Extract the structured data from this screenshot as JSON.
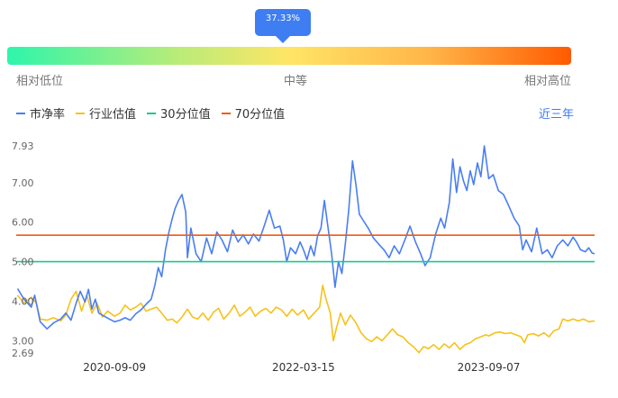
{
  "gauge": {
    "percentile_label": "37.33%",
    "percentile": 37.33,
    "low_label": "相对低位",
    "mid_label": "中等",
    "high_label": "相对高位",
    "colors": [
      "#2ef5ab",
      "#ffe566",
      "#ff5a00"
    ]
  },
  "legend": {
    "items": [
      {
        "label": "市净率",
        "color": "#4a7ef2"
      },
      {
        "label": "行业估值",
        "color": "#f5c21b"
      },
      {
        "label": "30分位值",
        "color": "#19c98a"
      },
      {
        "label": "70分位值",
        "color": "#f05a14"
      }
    ]
  },
  "range_button": "近三年",
  "chart_data": {
    "type": "line",
    "ylim": [
      2.69,
      7.93
    ],
    "y_ticks": [
      "7.93",
      "7.00",
      "6.00",
      "5.00",
      "4.00",
      "3.00",
      "2.69"
    ],
    "x_tick_labels": [
      "2020-09-09",
      "2022-03-15",
      "2023-09-07"
    ],
    "x_range": [
      "2019-11-27",
      "2024-07-12"
    ],
    "series": [
      {
        "name": "市净率",
        "color": "#4a7ef2",
        "points": [
          [
            "2019-12-01",
            4.32
          ],
          [
            "2019-12-20",
            4.05
          ],
          [
            "2020-01-10",
            3.85
          ],
          [
            "2020-01-20",
            4.15
          ],
          [
            "2020-02-05",
            3.48
          ],
          [
            "2020-02-25",
            3.3
          ],
          [
            "2020-03-15",
            3.45
          ],
          [
            "2020-04-05",
            3.55
          ],
          [
            "2020-04-20",
            3.7
          ],
          [
            "2020-05-05",
            3.52
          ],
          [
            "2020-05-20",
            3.95
          ],
          [
            "2020-06-01",
            4.25
          ],
          [
            "2020-06-15",
            3.98
          ],
          [
            "2020-06-25",
            4.3
          ],
          [
            "2020-07-05",
            3.8
          ],
          [
            "2020-07-15",
            4.05
          ],
          [
            "2020-07-25",
            3.7
          ],
          [
            "2020-08-10",
            3.62
          ],
          [
            "2020-08-25",
            3.55
          ],
          [
            "2020-09-09",
            3.48
          ],
          [
            "2020-09-25",
            3.52
          ],
          [
            "2020-10-10",
            3.58
          ],
          [
            "2020-10-25",
            3.52
          ],
          [
            "2020-11-10",
            3.68
          ],
          [
            "2020-11-25",
            3.78
          ],
          [
            "2020-12-10",
            3.92
          ],
          [
            "2020-12-25",
            4.05
          ],
          [
            "2021-01-05",
            4.4
          ],
          [
            "2021-01-15",
            4.85
          ],
          [
            "2021-01-25",
            4.62
          ],
          [
            "2021-02-05",
            5.3
          ],
          [
            "2021-02-15",
            5.75
          ],
          [
            "2021-02-25",
            6.1
          ],
          [
            "2021-03-05",
            6.35
          ],
          [
            "2021-03-15",
            6.55
          ],
          [
            "2021-03-25",
            6.7
          ],
          [
            "2021-04-05",
            6.25
          ],
          [
            "2021-04-10",
            5.1
          ],
          [
            "2021-04-20",
            5.85
          ],
          [
            "2021-05-05",
            5.2
          ],
          [
            "2021-05-20",
            5.0
          ],
          [
            "2021-06-05",
            5.6
          ],
          [
            "2021-06-20",
            5.2
          ],
          [
            "2021-07-05",
            5.75
          ],
          [
            "2021-07-20",
            5.55
          ],
          [
            "2021-08-05",
            5.25
          ],
          [
            "2021-08-20",
            5.8
          ],
          [
            "2021-09-05",
            5.5
          ],
          [
            "2021-09-20",
            5.68
          ],
          [
            "2021-10-05",
            5.45
          ],
          [
            "2021-10-20",
            5.7
          ],
          [
            "2021-11-05",
            5.52
          ],
          [
            "2021-11-20",
            5.9
          ],
          [
            "2021-12-05",
            6.3
          ],
          [
            "2021-12-20",
            5.85
          ],
          [
            "2022-01-05",
            5.9
          ],
          [
            "2022-01-15",
            5.55
          ],
          [
            "2022-01-25",
            5.0
          ],
          [
            "2022-02-05",
            5.35
          ],
          [
            "2022-02-20",
            5.2
          ],
          [
            "2022-03-05",
            5.5
          ],
          [
            "2022-03-15",
            5.3
          ],
          [
            "2022-03-25",
            5.05
          ],
          [
            "2022-04-05",
            5.4
          ],
          [
            "2022-04-15",
            5.15
          ],
          [
            "2022-04-25",
            5.65
          ],
          [
            "2022-05-05",
            5.85
          ],
          [
            "2022-05-15",
            6.55
          ],
          [
            "2022-05-25",
            5.9
          ],
          [
            "2022-06-05",
            5.2
          ],
          [
            "2022-06-15",
            4.35
          ],
          [
            "2022-06-25",
            5.0
          ],
          [
            "2022-07-05",
            4.7
          ],
          [
            "2022-07-15",
            5.45
          ],
          [
            "2022-07-25",
            6.3
          ],
          [
            "2022-08-05",
            7.55
          ],
          [
            "2022-08-15",
            6.95
          ],
          [
            "2022-08-25",
            6.2
          ],
          [
            "2022-09-05",
            6.05
          ],
          [
            "2022-09-20",
            5.85
          ],
          [
            "2022-10-05",
            5.6
          ],
          [
            "2022-10-20",
            5.45
          ],
          [
            "2022-11-05",
            5.3
          ],
          [
            "2022-11-20",
            5.1
          ],
          [
            "2022-12-05",
            5.4
          ],
          [
            "2022-12-20",
            5.2
          ],
          [
            "2023-01-05",
            5.55
          ],
          [
            "2023-01-20",
            5.9
          ],
          [
            "2023-02-05",
            5.5
          ],
          [
            "2023-02-20",
            5.2
          ],
          [
            "2023-03-05",
            4.9
          ],
          [
            "2023-03-20",
            5.1
          ],
          [
            "2023-04-05",
            5.7
          ],
          [
            "2023-04-20",
            6.1
          ],
          [
            "2023-05-01",
            5.85
          ],
          [
            "2023-05-15",
            6.5
          ],
          [
            "2023-05-25",
            7.6
          ],
          [
            "2023-06-05",
            6.75
          ],
          [
            "2023-06-15",
            7.4
          ],
          [
            "2023-06-25",
            7.05
          ],
          [
            "2023-07-05",
            6.8
          ],
          [
            "2023-07-15",
            7.3
          ],
          [
            "2023-07-25",
            6.95
          ],
          [
            "2023-08-05",
            7.5
          ],
          [
            "2023-08-15",
            7.15
          ],
          [
            "2023-08-25",
            7.93
          ],
          [
            "2023-09-07",
            7.1
          ],
          [
            "2023-09-20",
            7.2
          ],
          [
            "2023-10-05",
            6.8
          ],
          [
            "2023-10-20",
            6.7
          ],
          [
            "2023-11-05",
            6.4
          ],
          [
            "2023-11-20",
            6.1
          ],
          [
            "2023-12-05",
            5.9
          ],
          [
            "2023-12-15",
            5.3
          ],
          [
            "2023-12-25",
            5.55
          ],
          [
            "2024-01-10",
            5.25
          ],
          [
            "2024-01-25",
            5.85
          ],
          [
            "2024-02-10",
            5.2
          ],
          [
            "2024-02-25",
            5.3
          ],
          [
            "2024-03-10",
            5.1
          ],
          [
            "2024-03-25",
            5.4
          ],
          [
            "2024-04-10",
            5.55
          ],
          [
            "2024-04-25",
            5.4
          ],
          [
            "2024-05-10",
            5.62
          ],
          [
            "2024-05-20",
            5.5
          ],
          [
            "2024-06-01",
            5.3
          ],
          [
            "2024-06-15",
            5.25
          ],
          [
            "2024-06-25",
            5.35
          ],
          [
            "2024-07-05",
            5.22
          ],
          [
            "2024-07-12",
            5.2
          ]
        ]
      },
      {
        "name": "行业估值",
        "color": "#f5c21b",
        "points": [
          [
            "2019-12-01",
            4.15
          ],
          [
            "2019-12-20",
            3.95
          ],
          [
            "2020-01-10",
            4.1
          ],
          [
            "2020-01-25",
            3.95
          ],
          [
            "2020-02-05",
            3.55
          ],
          [
            "2020-02-25",
            3.52
          ],
          [
            "2020-03-15",
            3.58
          ],
          [
            "2020-04-05",
            3.5
          ],
          [
            "2020-04-20",
            3.65
          ],
          [
            "2020-05-05",
            4.05
          ],
          [
            "2020-05-20",
            4.25
          ],
          [
            "2020-06-05",
            3.75
          ],
          [
            "2020-06-20",
            4.15
          ],
          [
            "2020-07-05",
            3.7
          ],
          [
            "2020-07-20",
            3.95
          ],
          [
            "2020-08-05",
            3.6
          ],
          [
            "2020-08-20",
            3.75
          ],
          [
            "2020-09-09",
            3.62
          ],
          [
            "2020-09-25",
            3.7
          ],
          [
            "2020-10-10",
            3.9
          ],
          [
            "2020-10-25",
            3.78
          ],
          [
            "2020-11-10",
            3.85
          ],
          [
            "2020-11-25",
            3.95
          ],
          [
            "2020-12-10",
            3.75
          ],
          [
            "2020-12-25",
            3.8
          ],
          [
            "2021-01-10",
            3.85
          ],
          [
            "2021-01-25",
            3.7
          ],
          [
            "2021-02-10",
            3.52
          ],
          [
            "2021-02-25",
            3.55
          ],
          [
            "2021-03-10",
            3.45
          ],
          [
            "2021-03-25",
            3.6
          ],
          [
            "2021-04-10",
            3.8
          ],
          [
            "2021-04-25",
            3.6
          ],
          [
            "2021-05-10",
            3.55
          ],
          [
            "2021-05-25",
            3.7
          ],
          [
            "2021-06-10",
            3.52
          ],
          [
            "2021-06-25",
            3.72
          ],
          [
            "2021-07-10",
            3.82
          ],
          [
            "2021-07-25",
            3.55
          ],
          [
            "2021-08-10",
            3.7
          ],
          [
            "2021-08-25",
            3.9
          ],
          [
            "2021-09-10",
            3.62
          ],
          [
            "2021-09-25",
            3.72
          ],
          [
            "2021-10-10",
            3.85
          ],
          [
            "2021-10-25",
            3.62
          ],
          [
            "2021-11-10",
            3.75
          ],
          [
            "2021-11-25",
            3.82
          ],
          [
            "2021-12-10",
            3.7
          ],
          [
            "2021-12-25",
            3.85
          ],
          [
            "2022-01-10",
            3.78
          ],
          [
            "2022-01-25",
            3.62
          ],
          [
            "2022-02-10",
            3.8
          ],
          [
            "2022-02-25",
            3.65
          ],
          [
            "2022-03-15",
            3.78
          ],
          [
            "2022-03-30",
            3.55
          ],
          [
            "2022-04-15",
            3.7
          ],
          [
            "2022-05-01",
            3.85
          ],
          [
            "2022-05-10",
            4.4
          ],
          [
            "2022-05-20",
            4.05
          ],
          [
            "2022-06-01",
            3.7
          ],
          [
            "2022-06-10",
            3.0
          ],
          [
            "2022-06-20",
            3.35
          ],
          [
            "2022-07-01",
            3.7
          ],
          [
            "2022-07-15",
            3.4
          ],
          [
            "2022-07-30",
            3.65
          ],
          [
            "2022-08-15",
            3.45
          ],
          [
            "2022-08-30",
            3.2
          ],
          [
            "2022-09-15",
            3.05
          ],
          [
            "2022-09-30",
            2.98
          ],
          [
            "2022-10-15",
            3.1
          ],
          [
            "2022-10-30",
            3.0
          ],
          [
            "2022-11-15",
            3.15
          ],
          [
            "2022-11-30",
            3.3
          ],
          [
            "2022-12-15",
            3.15
          ],
          [
            "2022-12-30",
            3.1
          ],
          [
            "2023-01-15",
            2.95
          ],
          [
            "2023-01-30",
            2.85
          ],
          [
            "2023-02-15",
            2.7
          ],
          [
            "2023-03-01",
            2.85
          ],
          [
            "2023-03-15",
            2.8
          ],
          [
            "2023-03-30",
            2.9
          ],
          [
            "2023-04-15",
            2.78
          ],
          [
            "2023-04-30",
            2.92
          ],
          [
            "2023-05-15",
            2.82
          ],
          [
            "2023-05-30",
            2.95
          ],
          [
            "2023-06-15",
            2.78
          ],
          [
            "2023-06-30",
            2.9
          ],
          [
            "2023-07-15",
            2.95
          ],
          [
            "2023-07-30",
            3.05
          ],
          [
            "2023-08-15",
            3.1
          ],
          [
            "2023-08-30",
            3.15
          ],
          [
            "2023-09-07",
            3.12
          ],
          [
            "2023-09-25",
            3.2
          ],
          [
            "2023-10-10",
            3.22
          ],
          [
            "2023-10-25",
            3.18
          ],
          [
            "2023-11-10",
            3.2
          ],
          [
            "2023-11-25",
            3.15
          ],
          [
            "2023-12-10",
            3.1
          ],
          [
            "2023-12-20",
            2.95
          ],
          [
            "2023-12-30",
            3.15
          ],
          [
            "2024-01-15",
            3.18
          ],
          [
            "2024-01-30",
            3.12
          ],
          [
            "2024-02-15",
            3.2
          ],
          [
            "2024-03-01",
            3.1
          ],
          [
            "2024-03-15",
            3.25
          ],
          [
            "2024-03-30",
            3.3
          ],
          [
            "2024-04-10",
            3.55
          ],
          [
            "2024-04-25",
            3.5
          ],
          [
            "2024-05-10",
            3.55
          ],
          [
            "2024-05-25",
            3.5
          ],
          [
            "2024-06-10",
            3.55
          ],
          [
            "2024-06-25",
            3.48
          ],
          [
            "2024-07-12",
            3.5
          ]
        ]
      },
      {
        "name": "30分位值",
        "color": "#19c98a",
        "constant": 5.0
      },
      {
        "name": "70分位值",
        "color": "#f05a14",
        "constant": 5.67
      }
    ]
  }
}
